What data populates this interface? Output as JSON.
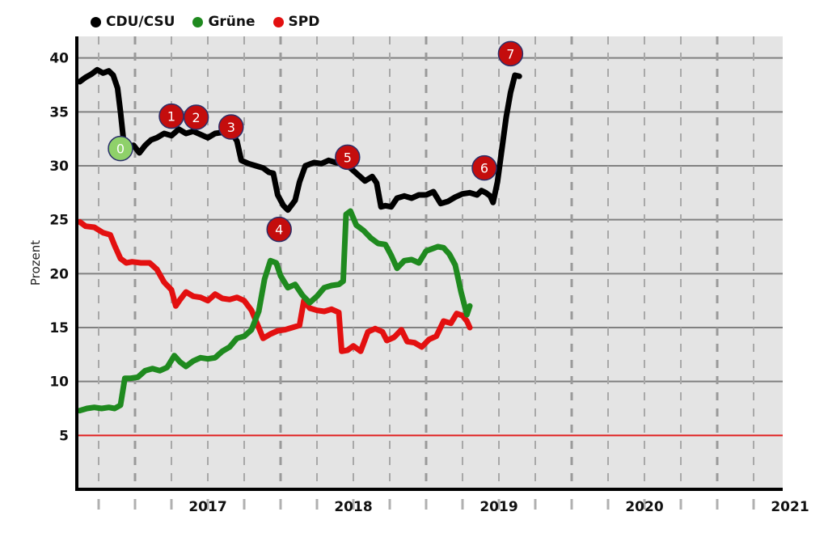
{
  "chart_data": {
    "type": "line",
    "ylabel": "Prozent",
    "ylim": [
      0,
      42
    ],
    "yticks": [
      5,
      10,
      15,
      20,
      25,
      30,
      35,
      40
    ],
    "xlim": [
      2016.6,
      2021.45
    ],
    "xticks": [
      {
        "x": 2017,
        "label": "2017"
      },
      {
        "x": 2018,
        "label": "2018"
      },
      {
        "x": 2019,
        "label": "2019"
      },
      {
        "x": 2020,
        "label": "2020"
      },
      {
        "x": 2021,
        "label": "2021"
      }
    ],
    "grid": true,
    "legend_position": "top-left",
    "threshold": {
      "y": 5,
      "color": "#e02020"
    },
    "colors": {
      "plot_bg": "#e4e4e4",
      "grid": "#808080",
      "axis": "#000000"
    },
    "series": [
      {
        "name": "CDU/CSU",
        "color": "#000000",
        "points": [
          [
            2016.62,
            37.8
          ],
          [
            2016.66,
            38.2
          ],
          [
            2016.7,
            38.5
          ],
          [
            2016.74,
            38.9
          ],
          [
            2016.78,
            38.6
          ],
          [
            2016.82,
            38.8
          ],
          [
            2016.85,
            38.4
          ],
          [
            2016.88,
            37.2
          ],
          [
            2016.9,
            35.0
          ],
          [
            2016.92,
            32.5
          ],
          [
            2016.95,
            31.8
          ],
          [
            2016.99,
            31.9
          ],
          [
            2017.03,
            31.2
          ],
          [
            2017.07,
            31.9
          ],
          [
            2017.11,
            32.4
          ],
          [
            2017.15,
            32.6
          ],
          [
            2017.2,
            33.0
          ],
          [
            2017.25,
            32.8
          ],
          [
            2017.3,
            33.4
          ],
          [
            2017.35,
            33.0
          ],
          [
            2017.4,
            33.2
          ],
          [
            2017.45,
            32.9
          ],
          [
            2017.5,
            32.6
          ],
          [
            2017.55,
            33.0
          ],
          [
            2017.6,
            33.1
          ],
          [
            2017.65,
            33.3
          ],
          [
            2017.7,
            32.3
          ],
          [
            2017.73,
            30.5
          ],
          [
            2017.78,
            30.2
          ],
          [
            2017.83,
            30.0
          ],
          [
            2017.88,
            29.8
          ],
          [
            2017.92,
            29.4
          ],
          [
            2017.95,
            29.3
          ],
          [
            2017.98,
            27.3
          ],
          [
            2018.02,
            26.3
          ],
          [
            2018.05,
            25.9
          ],
          [
            2018.1,
            26.8
          ],
          [
            2018.13,
            28.5
          ],
          [
            2018.17,
            30.0
          ],
          [
            2018.23,
            30.3
          ],
          [
            2018.28,
            30.2
          ],
          [
            2018.33,
            30.5
          ],
          [
            2018.38,
            30.3
          ],
          [
            2018.43,
            30.2
          ],
          [
            2018.48,
            29.8
          ],
          [
            2018.53,
            29.2
          ],
          [
            2018.58,
            28.6
          ],
          [
            2018.63,
            29.0
          ],
          [
            2018.66,
            28.4
          ],
          [
            2018.69,
            26.2
          ],
          [
            2018.72,
            26.3
          ],
          [
            2018.76,
            26.2
          ],
          [
            2018.8,
            27.0
          ],
          [
            2018.85,
            27.2
          ],
          [
            2018.9,
            27.0
          ],
          [
            2018.95,
            27.3
          ],
          [
            2019.0,
            27.3
          ],
          [
            2019.05,
            27.6
          ],
          [
            2019.1,
            26.5
          ],
          [
            2019.15,
            26.7
          ],
          [
            2019.2,
            27.1
          ],
          [
            2019.25,
            27.4
          ],
          [
            2019.3,
            27.5
          ],
          [
            2019.35,
            27.3
          ],
          [
            2019.38,
            27.7
          ],
          [
            2019.41,
            27.5
          ],
          [
            2019.44,
            27.2
          ],
          [
            2019.46,
            26.6
          ],
          [
            2019.49,
            28.5
          ],
          [
            2019.52,
            31.5
          ],
          [
            2019.55,
            34.5
          ],
          [
            2019.58,
            36.8
          ],
          [
            2019.61,
            38.4
          ],
          [
            2019.64,
            38.3
          ]
        ]
      },
      {
        "name": "Grüne",
        "color": "#1f8a1f",
        "points": [
          [
            2016.62,
            7.3
          ],
          [
            2016.67,
            7.5
          ],
          [
            2016.72,
            7.6
          ],
          [
            2016.77,
            7.5
          ],
          [
            2016.82,
            7.6
          ],
          [
            2016.86,
            7.5
          ],
          [
            2016.9,
            7.8
          ],
          [
            2016.93,
            10.3
          ],
          [
            2016.97,
            10.3
          ],
          [
            2017.02,
            10.4
          ],
          [
            2017.07,
            11.0
          ],
          [
            2017.12,
            11.2
          ],
          [
            2017.17,
            11.0
          ],
          [
            2017.22,
            11.3
          ],
          [
            2017.27,
            12.4
          ],
          [
            2017.31,
            11.8
          ],
          [
            2017.35,
            11.4
          ],
          [
            2017.4,
            11.9
          ],
          [
            2017.45,
            12.2
          ],
          [
            2017.5,
            12.1
          ],
          [
            2017.55,
            12.2
          ],
          [
            2017.6,
            12.8
          ],
          [
            2017.65,
            13.2
          ],
          [
            2017.7,
            14.0
          ],
          [
            2017.75,
            14.2
          ],
          [
            2017.8,
            14.8
          ],
          [
            2017.85,
            16.5
          ],
          [
            2017.89,
            19.5
          ],
          [
            2017.93,
            21.2
          ],
          [
            2017.97,
            21.0
          ],
          [
            2018.0,
            19.8
          ],
          [
            2018.05,
            18.7
          ],
          [
            2018.1,
            19.0
          ],
          [
            2018.15,
            18.0
          ],
          [
            2018.2,
            17.3
          ],
          [
            2018.25,
            17.9
          ],
          [
            2018.3,
            18.7
          ],
          [
            2018.35,
            18.9
          ],
          [
            2018.4,
            19.0
          ],
          [
            2018.43,
            19.3
          ],
          [
            2018.45,
            25.5
          ],
          [
            2018.48,
            25.8
          ],
          [
            2018.52,
            24.5
          ],
          [
            2018.57,
            24.0
          ],
          [
            2018.62,
            23.3
          ],
          [
            2018.67,
            22.8
          ],
          [
            2018.72,
            22.7
          ],
          [
            2018.76,
            21.7
          ],
          [
            2018.8,
            20.5
          ],
          [
            2018.85,
            21.2
          ],
          [
            2018.9,
            21.3
          ],
          [
            2018.95,
            21.0
          ],
          [
            2019.0,
            22.1
          ],
          [
            2019.04,
            22.3
          ],
          [
            2019.08,
            22.5
          ],
          [
            2019.12,
            22.4
          ],
          [
            2019.16,
            21.8
          ],
          [
            2019.2,
            20.8
          ],
          [
            2019.24,
            18.3
          ],
          [
            2019.28,
            16.2
          ],
          [
            2019.3,
            17.0
          ]
        ]
      },
      {
        "name": "SPD",
        "color": "#e31010",
        "points": [
          [
            2016.62,
            24.8
          ],
          [
            2016.66,
            24.4
          ],
          [
            2016.72,
            24.3
          ],
          [
            2016.78,
            23.8
          ],
          [
            2016.83,
            23.6
          ],
          [
            2016.86,
            22.6
          ],
          [
            2016.9,
            21.4
          ],
          [
            2016.94,
            21.0
          ],
          [
            2016.98,
            21.1
          ],
          [
            2017.04,
            21.0
          ],
          [
            2017.1,
            21.0
          ],
          [
            2017.15,
            20.4
          ],
          [
            2017.2,
            19.2
          ],
          [
            2017.25,
            18.5
          ],
          [
            2017.28,
            17.0
          ],
          [
            2017.31,
            17.6
          ],
          [
            2017.35,
            18.3
          ],
          [
            2017.4,
            17.9
          ],
          [
            2017.45,
            17.8
          ],
          [
            2017.5,
            17.5
          ],
          [
            2017.55,
            18.1
          ],
          [
            2017.6,
            17.7
          ],
          [
            2017.65,
            17.6
          ],
          [
            2017.7,
            17.8
          ],
          [
            2017.75,
            17.5
          ],
          [
            2017.8,
            16.6
          ],
          [
            2017.85,
            15.0
          ],
          [
            2017.88,
            14.0
          ],
          [
            2017.93,
            14.4
          ],
          [
            2017.98,
            14.7
          ],
          [
            2018.03,
            14.8
          ],
          [
            2018.08,
            15.0
          ],
          [
            2018.13,
            15.2
          ],
          [
            2018.16,
            17.5
          ],
          [
            2018.2,
            16.8
          ],
          [
            2018.25,
            16.6
          ],
          [
            2018.3,
            16.5
          ],
          [
            2018.35,
            16.7
          ],
          [
            2018.4,
            16.4
          ],
          [
            2018.42,
            12.8
          ],
          [
            2018.46,
            12.9
          ],
          [
            2018.5,
            13.3
          ],
          [
            2018.55,
            12.8
          ],
          [
            2018.6,
            14.6
          ],
          [
            2018.65,
            14.9
          ],
          [
            2018.7,
            14.6
          ],
          [
            2018.73,
            13.8
          ],
          [
            2018.78,
            14.1
          ],
          [
            2018.83,
            14.8
          ],
          [
            2018.87,
            13.7
          ],
          [
            2018.92,
            13.6
          ],
          [
            2018.97,
            13.2
          ],
          [
            2019.02,
            13.9
          ],
          [
            2019.07,
            14.2
          ],
          [
            2019.12,
            15.6
          ],
          [
            2019.17,
            15.4
          ],
          [
            2019.21,
            16.3
          ],
          [
            2019.25,
            16.1
          ],
          [
            2019.28,
            15.6
          ],
          [
            2019.3,
            15.0
          ]
        ]
      }
    ],
    "annotations": [
      {
        "label": "0",
        "x": 2016.9,
        "y": 31.6,
        "fill": "#8fd16a",
        "text_color": "#ffffff"
      },
      {
        "label": "1",
        "x": 2017.25,
        "y": 34.6,
        "fill": "#c40d0d",
        "text_color": "#ffffff"
      },
      {
        "label": "2",
        "x": 2017.42,
        "y": 34.5,
        "fill": "#c40d0d",
        "text_color": "#ffffff"
      },
      {
        "label": "3",
        "x": 2017.66,
        "y": 33.6,
        "fill": "#c40d0d",
        "text_color": "#ffffff"
      },
      {
        "label": "4",
        "x": 2017.99,
        "y": 24.1,
        "fill": "#c40d0d",
        "text_color": "#ffffff"
      },
      {
        "label": "5",
        "x": 2018.46,
        "y": 30.8,
        "fill": "#c40d0d",
        "text_color": "#ffffff"
      },
      {
        "label": "6",
        "x": 2019.4,
        "y": 29.8,
        "fill": "#c40d0d",
        "text_color": "#ffffff"
      },
      {
        "label": "7",
        "x": 2019.58,
        "y": 40.4,
        "fill": "#c40d0d",
        "text_color": "#ffffff"
      }
    ]
  }
}
